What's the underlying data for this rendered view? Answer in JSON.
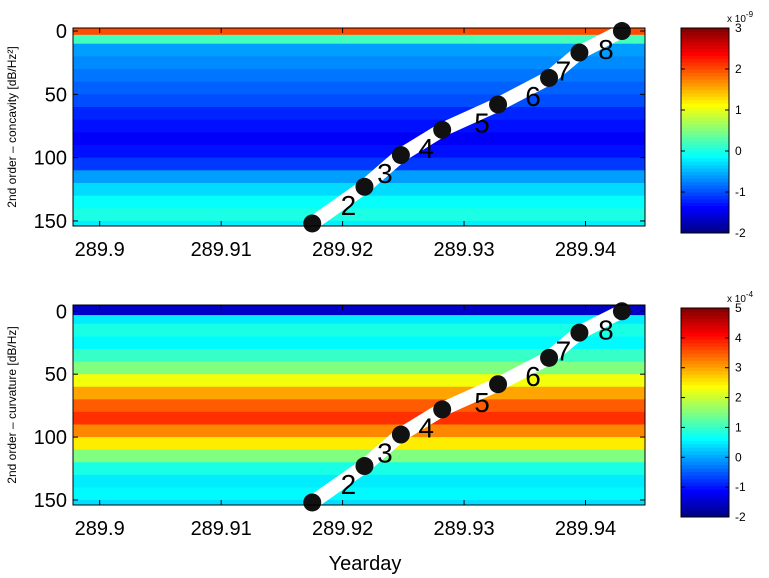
{
  "chart_data": [
    {
      "type": "heatmap",
      "ylabel": "2nd order – concavity [dB/Hz²]",
      "xlim": [
        289.8978,
        289.9449
      ],
      "xticks": [
        289.9,
        289.91,
        289.92,
        289.93,
        289.94
      ],
      "ylim": [
        -2.4,
        154
      ],
      "yticks": [
        0,
        50,
        100,
        150
      ],
      "y_reversed": true,
      "colormap": "jet",
      "clim": [
        -2,
        3
      ],
      "cticks": [
        -2,
        -1,
        0,
        1,
        2,
        3
      ],
      "cbar_multiplier": "x 10",
      "cbar_power": "-9",
      "ybins": [
        -5,
        3,
        10,
        20,
        30,
        40,
        50,
        60,
        70,
        80,
        90,
        100,
        110,
        120,
        130,
        140,
        150,
        160
      ],
      "values": [
        2.0,
        0.2,
        -0.6,
        -0.7,
        -0.8,
        -0.9,
        -1.0,
        -1.2,
        -1.3,
        -1.4,
        -1.3,
        -1.1,
        -0.6,
        -0.3,
        -0.1,
        0.0,
        -0.2
      ],
      "track": {
        "x": [
          289.9175,
          289.9218,
          289.9248,
          289.9282,
          289.9328,
          289.937,
          289.9395,
          289.943
        ],
        "y": [
          152,
          123,
          98,
          78,
          58,
          37,
          17,
          0
        ],
        "labels": [
          null,
          "2",
          "3",
          "4",
          "5",
          "6",
          "7",
          "8"
        ]
      }
    },
    {
      "type": "heatmap",
      "ylabel": "2nd order – curvature [dB/Hz]",
      "xlabel": "Yearday",
      "xlim": [
        289.8978,
        289.9449
      ],
      "xticks": [
        289.9,
        289.91,
        289.92,
        289.93,
        289.94
      ],
      "ylim": [
        -5,
        154
      ],
      "yticks": [
        0,
        50,
        100,
        150
      ],
      "y_reversed": true,
      "colormap": "jet",
      "clim": [
        -2,
        5
      ],
      "cticks": [
        -2,
        -1,
        0,
        1,
        2,
        3,
        4,
        5
      ],
      "cbar_multiplier": "x 10",
      "cbar_power": "-4",
      "ybins": [
        -5,
        3,
        10,
        20,
        30,
        40,
        50,
        60,
        70,
        80,
        90,
        100,
        110,
        120,
        130,
        140,
        150,
        160
      ],
      "values": [
        -1.5,
        0.5,
        0.8,
        0.6,
        1.0,
        1.5,
        2.3,
        3.0,
        3.5,
        3.8,
        3.2,
        2.5,
        1.5,
        0.8,
        0.5,
        0.6,
        0.4
      ],
      "track": {
        "x": [
          289.9175,
          289.9218,
          289.9248,
          289.9282,
          289.9328,
          289.937,
          289.9395,
          289.943
        ],
        "y": [
          152,
          123,
          98,
          78,
          58,
          37,
          17,
          0
        ],
        "labels": [
          null,
          "2",
          "3",
          "4",
          "5",
          "6",
          "7",
          "8"
        ]
      }
    }
  ]
}
